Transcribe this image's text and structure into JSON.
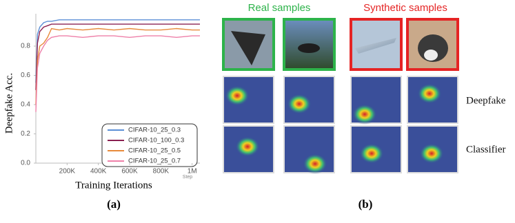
{
  "chart_data": {
    "type": "line",
    "y_label": "Deepfake Acc.",
    "x_label": "Training Iterations",
    "annotation": "Step",
    "x": [
      0,
      10000,
      25000,
      50000,
      75000,
      100000,
      150000,
      200000,
      300000,
      400000,
      500000,
      600000,
      700000,
      800000,
      900000,
      1000000,
      1050000
    ],
    "series": [
      {
        "name": "CIFAR-10_25_0.3",
        "color": "#5b8fd6",
        "values": [
          0.55,
          0.88,
          0.93,
          0.96,
          0.97,
          0.97,
          0.98,
          0.98,
          0.98,
          0.98,
          0.98,
          0.98,
          0.98,
          0.98,
          0.98,
          0.98,
          0.98
        ]
      },
      {
        "name": "CIFAR-10_100_0.3",
        "color": "#8a2050",
        "values": [
          0.5,
          0.82,
          0.9,
          0.93,
          0.94,
          0.95,
          0.95,
          0.95,
          0.95,
          0.95,
          0.95,
          0.95,
          0.95,
          0.95,
          0.95,
          0.95,
          0.95
        ]
      },
      {
        "name": "CIFAR-10_25_0.5",
        "color": "#e88a3a",
        "values": [
          0.4,
          0.7,
          0.8,
          0.82,
          0.86,
          0.92,
          0.91,
          0.92,
          0.91,
          0.92,
          0.91,
          0.92,
          0.91,
          0.91,
          0.92,
          0.91,
          0.91
        ]
      },
      {
        "name": "CIFAR-10_25_0.7",
        "color": "#ee7fa8",
        "values": [
          0.35,
          0.65,
          0.75,
          0.8,
          0.84,
          0.86,
          0.87,
          0.87,
          0.86,
          0.87,
          0.87,
          0.86,
          0.87,
          0.87,
          0.86,
          0.87,
          0.87
        ]
      }
    ],
    "xlim": [
      0,
      1050000
    ],
    "xticks": [
      {
        "value": 200000,
        "label": "200K"
      },
      {
        "value": 400000,
        "label": "400K"
      },
      {
        "value": 600000,
        "label": "600K"
      },
      {
        "value": 800000,
        "label": "800K"
      },
      {
        "value": 1000000,
        "label": "1M"
      }
    ],
    "ylim": [
      0,
      1.0
    ],
    "yticks": [
      {
        "value": 0,
        "label": "0.0"
      },
      0.2,
      0.4,
      0.6,
      0.8
    ],
    "grid": false,
    "legend": "lower right"
  },
  "panel_b": {
    "real_heading": "Real samples",
    "synthetic_heading": "Synthetic samples",
    "row_labels": [
      "Deepfake",
      "Classifier"
    ]
  },
  "captions": [
    "(a)",
    "(b)"
  ]
}
